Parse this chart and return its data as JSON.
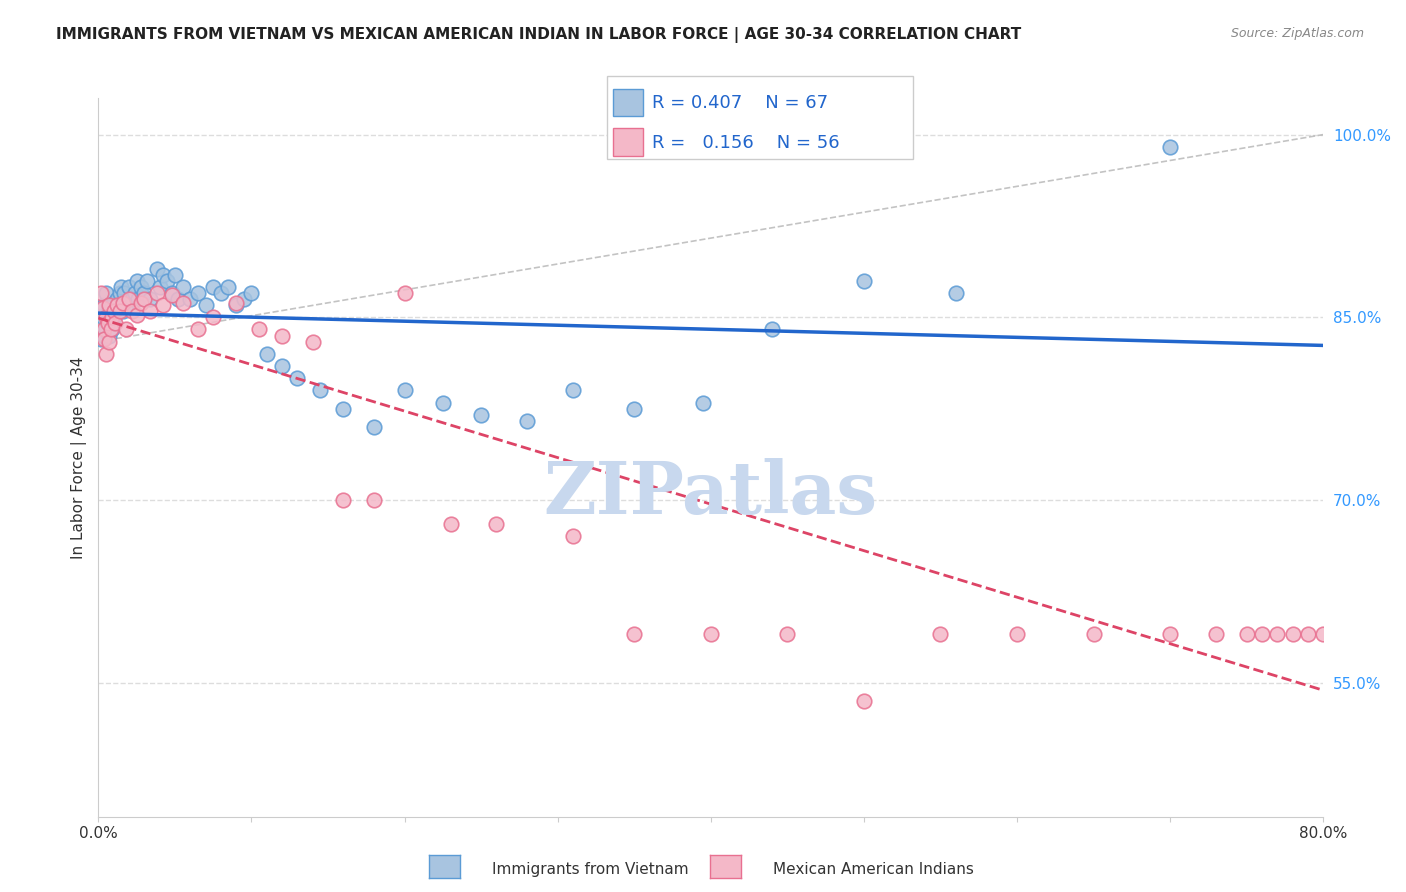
{
  "title": "IMMIGRANTS FROM VIETNAM VS MEXICAN AMERICAN INDIAN IN LABOR FORCE | AGE 30-34 CORRELATION CHART",
  "source": "Source: ZipAtlas.com",
  "ylabel": "In Labor Force | Age 30-34",
  "xlabel_bottom": "",
  "xlim": [
    0.0,
    0.8
  ],
  "ylim": [
    0.44,
    1.03
  ],
  "xticks": [
    0.0,
    0.1,
    0.2,
    0.3,
    0.4,
    0.5,
    0.6,
    0.7,
    0.8
  ],
  "yticks_right": [
    0.55,
    0.7,
    0.85,
    1.0
  ],
  "ytick_labels_right": [
    "55.0%",
    "70.0%",
    "85.0%",
    "100.0%"
  ],
  "xtick_labels": [
    "0.0%",
    "",
    "",
    "",
    "",
    "",
    "",
    "",
    "80.0%"
  ],
  "grid_color": "#dddddd",
  "background_color": "#ffffff",
  "series1_color": "#a8c4e0",
  "series1_edge": "#5b9bd5",
  "series1_label": "Immigrants from Vietnam",
  "series1_R": "0.407",
  "series1_N": "67",
  "series2_color": "#f4b8c8",
  "series2_edge": "#e87090",
  "series2_label": "Mexican American Indians",
  "series2_R": "0.156",
  "series2_N": "56",
  "trendline1_color": "#2266cc",
  "trendline2_color": "#dd4466",
  "refline_color": "#aaaaaa",
  "watermark": "ZIPatlas",
  "watermark_color": "#c8d8ee",
  "series1_x": [
    0.002,
    0.003,
    0.004,
    0.004,
    0.005,
    0.005,
    0.006,
    0.006,
    0.007,
    0.007,
    0.008,
    0.008,
    0.009,
    0.009,
    0.01,
    0.01,
    0.011,
    0.012,
    0.013,
    0.014,
    0.015,
    0.016,
    0.017,
    0.018,
    0.02,
    0.022,
    0.024,
    0.025,
    0.026,
    0.028,
    0.03,
    0.032,
    0.034,
    0.038,
    0.04,
    0.042,
    0.045,
    0.048,
    0.05,
    0.052,
    0.055,
    0.06,
    0.065,
    0.07,
    0.075,
    0.08,
    0.085,
    0.09,
    0.095,
    0.1,
    0.11,
    0.12,
    0.13,
    0.145,
    0.16,
    0.18,
    0.2,
    0.225,
    0.25,
    0.28,
    0.31,
    0.35,
    0.395,
    0.44,
    0.5,
    0.56,
    0.7
  ],
  "series1_y": [
    0.832,
    0.85,
    0.835,
    0.86,
    0.87,
    0.84,
    0.845,
    0.855,
    0.835,
    0.85,
    0.845,
    0.855,
    0.86,
    0.84,
    0.85,
    0.862,
    0.855,
    0.865,
    0.86,
    0.87,
    0.875,
    0.855,
    0.87,
    0.86,
    0.875,
    0.865,
    0.87,
    0.88,
    0.865,
    0.875,
    0.87,
    0.88,
    0.865,
    0.89,
    0.875,
    0.885,
    0.88,
    0.87,
    0.885,
    0.865,
    0.875,
    0.865,
    0.87,
    0.86,
    0.875,
    0.87,
    0.875,
    0.86,
    0.865,
    0.87,
    0.82,
    0.81,
    0.8,
    0.79,
    0.775,
    0.76,
    0.79,
    0.78,
    0.77,
    0.765,
    0.79,
    0.775,
    0.78,
    0.84,
    0.88,
    0.87,
    0.99
  ],
  "series2_x": [
    0.002,
    0.003,
    0.004,
    0.004,
    0.005,
    0.005,
    0.006,
    0.007,
    0.007,
    0.008,
    0.009,
    0.01,
    0.011,
    0.012,
    0.014,
    0.016,
    0.018,
    0.02,
    0.022,
    0.025,
    0.028,
    0.03,
    0.034,
    0.038,
    0.042,
    0.048,
    0.055,
    0.065,
    0.075,
    0.09,
    0.105,
    0.12,
    0.14,
    0.16,
    0.18,
    0.2,
    0.23,
    0.26,
    0.31,
    0.35,
    0.4,
    0.45,
    0.5,
    0.55,
    0.6,
    0.65,
    0.7,
    0.73,
    0.75,
    0.76,
    0.77,
    0.78,
    0.79,
    0.8,
    0.81,
    0.82
  ],
  "series2_y": [
    0.87,
    0.858,
    0.84,
    0.832,
    0.85,
    0.82,
    0.845,
    0.83,
    0.86,
    0.84,
    0.85,
    0.855,
    0.845,
    0.86,
    0.855,
    0.862,
    0.84,
    0.865,
    0.855,
    0.852,
    0.862,
    0.865,
    0.855,
    0.87,
    0.86,
    0.868,
    0.862,
    0.84,
    0.85,
    0.862,
    0.84,
    0.835,
    0.83,
    0.7,
    0.7,
    0.87,
    0.68,
    0.68,
    0.67,
    0.59,
    0.59,
    0.59,
    0.535,
    0.59,
    0.59,
    0.59,
    0.59,
    0.59,
    0.59,
    0.59,
    0.59,
    0.59,
    0.59,
    0.59,
    0.59,
    0.59
  ]
}
